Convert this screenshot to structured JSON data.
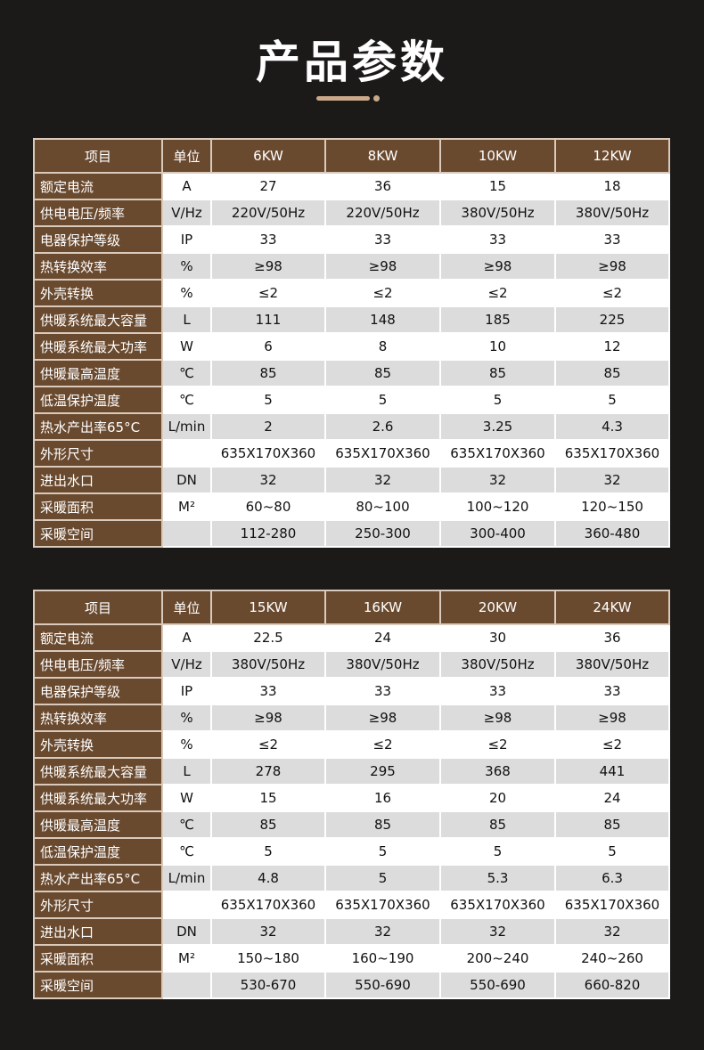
{
  "title": "产品参数",
  "header_labels": {
    "item": "项目",
    "unit": "单位"
  },
  "row_names": [
    "额定电流",
    "供电电压/频率",
    "电器保护等级",
    "热转换效率",
    "外壳转换",
    "供暖系统最大容量",
    "供暖系统最大功率",
    "供暖最高温度",
    "低温保护温度",
    "热水产出率65°C",
    "外形尺寸",
    "进出水口",
    "采暖面积",
    "采暖空间"
  ],
  "units": [
    "A",
    "V/Hz",
    "IP",
    "%",
    "%",
    "L",
    "W",
    "℃",
    "℃",
    "L/min",
    "",
    "DN",
    "M²",
    ""
  ],
  "tables": [
    {
      "models": [
        "6KW",
        "8KW",
        "10KW",
        "12KW"
      ],
      "rows": [
        [
          "27",
          "36",
          "15",
          "18"
        ],
        [
          "220V/50Hz",
          "220V/50Hz",
          "380V/50Hz",
          "380V/50Hz"
        ],
        [
          "33",
          "33",
          "33",
          "33"
        ],
        [
          "≥98",
          "≥98",
          "≥98",
          "≥98"
        ],
        [
          "≤2",
          "≤2",
          "≤2",
          "≤2"
        ],
        [
          "111",
          "148",
          "185",
          "225"
        ],
        [
          "6",
          "8",
          "10",
          "12"
        ],
        [
          "85",
          "85",
          "85",
          "85"
        ],
        [
          "5",
          "5",
          "5",
          "5"
        ],
        [
          "2",
          "2.6",
          "3.25",
          "4.3"
        ],
        [
          "635X170X360",
          "635X170X360",
          "635X170X360",
          "635X170X360"
        ],
        [
          "32",
          "32",
          "32",
          "32"
        ],
        [
          "60~80",
          "80~100",
          "100~120",
          "120~150"
        ],
        [
          "112-280",
          "250-300",
          "300-400",
          "360-480"
        ]
      ]
    },
    {
      "models": [
        "15KW",
        "16KW",
        "20KW",
        "24KW"
      ],
      "rows": [
        [
          "22.5",
          "24",
          "30",
          "36"
        ],
        [
          "380V/50Hz",
          "380V/50Hz",
          "380V/50Hz",
          "380V/50Hz"
        ],
        [
          "33",
          "33",
          "33",
          "33"
        ],
        [
          "≥98",
          "≥98",
          "≥98",
          "≥98"
        ],
        [
          "≤2",
          "≤2",
          "≤2",
          "≤2"
        ],
        [
          "278",
          "295",
          "368",
          "441"
        ],
        [
          "15",
          "16",
          "20",
          "24"
        ],
        [
          "85",
          "85",
          "85",
          "85"
        ],
        [
          "5",
          "5",
          "5",
          "5"
        ],
        [
          "4.8",
          "5",
          "5.3",
          "6.3"
        ],
        [
          "635X170X360",
          "635X170X360",
          "635X170X360",
          "635X170X360"
        ],
        [
          "32",
          "32",
          "32",
          "32"
        ],
        [
          "150~180",
          "160~190",
          "200~240",
          "240~260"
        ],
        [
          "530-670",
          "550-690",
          "550-690",
          "660-820"
        ]
      ]
    }
  ],
  "colors": {
    "background": "#1c1a19",
    "header_brown": "#6a4a2f",
    "accent": "#c9a98a",
    "stripe": "#dcdcdc"
  }
}
